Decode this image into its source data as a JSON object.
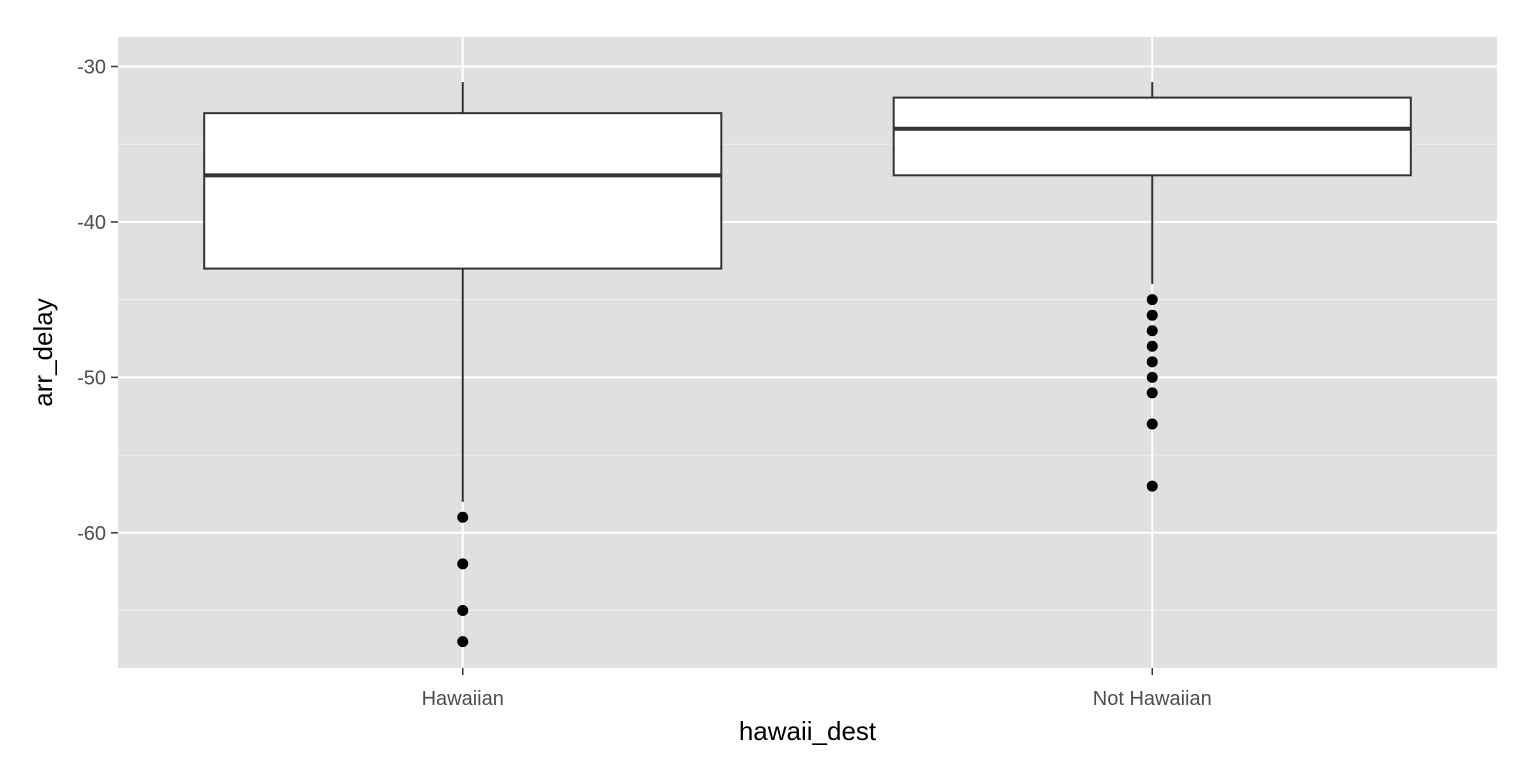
{
  "chart_data": {
    "type": "boxplot",
    "title": "",
    "xlabel": "hawaii_dest",
    "ylabel": "arr_delay",
    "ylim": [
      -68.7,
      -28.1
    ],
    "yticks": [
      -30,
      -40,
      -50,
      -60
    ],
    "ytick_labels": [
      "-30",
      "-40",
      "-50",
      "-60"
    ],
    "grid": true,
    "categories": [
      "Hawaiian",
      "Not Hawaiian"
    ],
    "boxes": [
      {
        "category": "Hawaiian",
        "whisker_low": -58,
        "q1": -43,
        "median": -37,
        "q3": -33,
        "whisker_high": -31,
        "outliers": [
          -59,
          -62,
          -65,
          -67
        ]
      },
      {
        "category": "Not Hawaiian",
        "whisker_low": -44,
        "q1": -37,
        "median": -34,
        "q3": -32,
        "whisker_high": -31,
        "outliers": [
          -45,
          -46,
          -47,
          -48,
          -49,
          -50,
          -51,
          -53,
          -57
        ]
      }
    ],
    "colors": {
      "panel": "#e0e0e0",
      "grid_major": "#ffffff",
      "grid_minor": "#f0f0f0",
      "box_fill": "#ffffff",
      "box_stroke": "#333333",
      "point": "#000000"
    }
  }
}
